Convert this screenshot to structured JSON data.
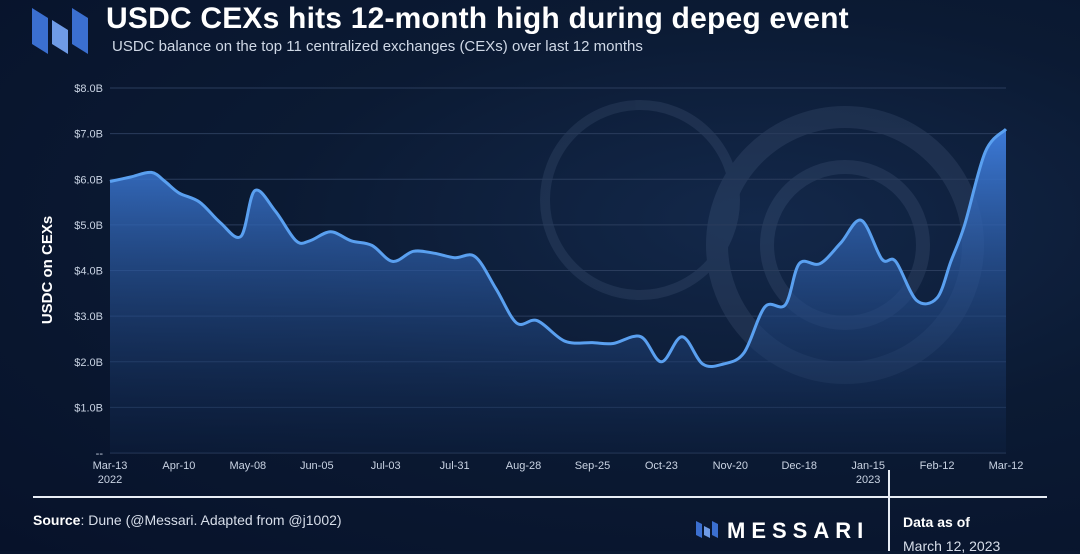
{
  "header": {
    "title": "USDC CEXs hits 12-month high during depeg event",
    "subtitle": "USDC balance on the top 11 centralized exchanges (CEXs) over last 12 months"
  },
  "colors": {
    "background": "#0b1a33",
    "line": "#5aa0f0",
    "fill_top": "#3f7fe0",
    "grid": "#2a3c5c",
    "text": "#ffffff"
  },
  "icons": [
    "messari-logo-icon",
    "messari-brand-icon",
    "usdc-watermark-icon"
  ],
  "chart_data": {
    "type": "area",
    "title": "USDC CEXs hits 12-month high during depeg event",
    "subtitle": "USDC balance on the top 11 centralized exchanges (CEXs) over last 12 months",
    "ylabel": "USDC on CEXs",
    "xlabel": "",
    "ylim": [
      0,
      8
    ],
    "y_ticks": [
      "--",
      "$1.0B",
      "$2.0B",
      "$3.0B",
      "$4.0B",
      "$5.0B",
      "$6.0B",
      "$7.0B",
      "$8.0B"
    ],
    "x_ticks": [
      {
        "label": "Mar-13",
        "sub": "2022"
      },
      {
        "label": "Apr-10",
        "sub": ""
      },
      {
        "label": "May-08",
        "sub": ""
      },
      {
        "label": "Jun-05",
        "sub": ""
      },
      {
        "label": "Jul-03",
        "sub": ""
      },
      {
        "label": "Jul-31",
        "sub": ""
      },
      {
        "label": "Aug-28",
        "sub": ""
      },
      {
        "label": "Sep-25",
        "sub": ""
      },
      {
        "label": "Oct-23",
        "sub": ""
      },
      {
        "label": "Nov-20",
        "sub": ""
      },
      {
        "label": "Dec-18",
        "sub": ""
      },
      {
        "label": "Jan-15",
        "sub": "2023"
      },
      {
        "label": "Feb-12",
        "sub": ""
      },
      {
        "label": "Mar-12",
        "sub": ""
      }
    ],
    "grid": true,
    "legend": "none",
    "series": [
      {
        "x": [
          0,
          0.3,
          0.6,
          0.8,
          1,
          1.3,
          1.6,
          1.9,
          2.1,
          2.4,
          2.7,
          2.9,
          3.2,
          3.5,
          3.8,
          4.1,
          4.4,
          4.7,
          5,
          5.3,
          5.6,
          5.9,
          6.2,
          6.6,
          7,
          7.3,
          7.7,
          8,
          8.3,
          8.6,
          8.9,
          9.2,
          9.5,
          9.8,
          10,
          10.3,
          10.6,
          10.9,
          11.2,
          11.4,
          11.7,
          12,
          12.2,
          12.4,
          12.7,
          13
        ],
        "values": [
          5.95,
          6.05,
          6.15,
          5.95,
          5.7,
          5.5,
          5.05,
          4.75,
          5.75,
          5.3,
          4.65,
          4.65,
          4.85,
          4.65,
          4.55,
          4.2,
          4.42,
          4.38,
          4.28,
          4.3,
          3.6,
          2.85,
          2.9,
          2.45,
          2.42,
          2.4,
          2.55,
          2.0,
          2.55,
          1.95,
          1.95,
          2.2,
          3.2,
          3.25,
          4.15,
          4.15,
          4.6,
          5.1,
          4.25,
          4.2,
          3.35,
          3.4,
          4.2,
          5.0,
          6.6,
          7.1
        ]
      }
    ]
  },
  "footer": {
    "source_label": "Source",
    "source_text": ": Dune (@Messari. Adapted from @j1002)",
    "brand": "MESSARI",
    "data_as_of_label": "Data as of",
    "data_date": "March 12, 2023"
  }
}
